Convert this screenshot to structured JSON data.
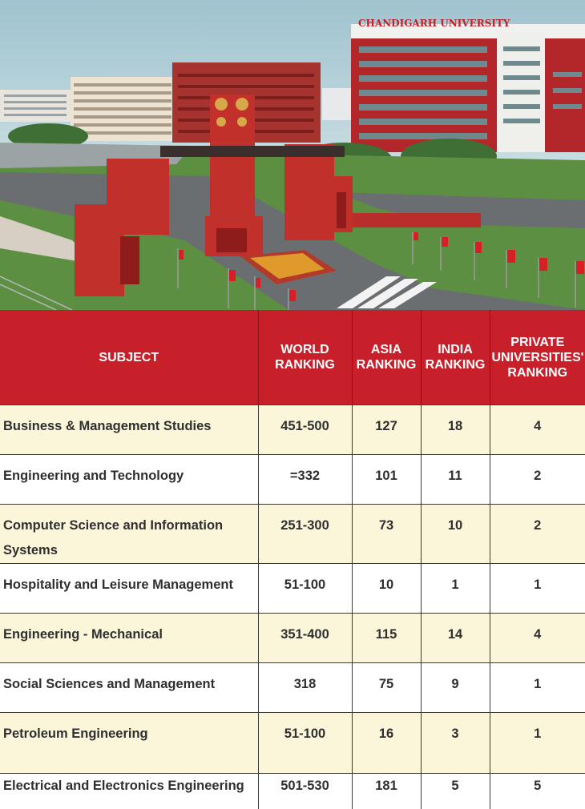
{
  "header_photo": {
    "sign_text": "CHANDIGARH UNIVERSITY"
  },
  "table": {
    "headers": [
      "SUBJECT",
      "WORLD\nRANKING",
      "ASIA\nRANKING",
      "INDIA\nRANKING",
      "PRIVATE\nUNIVERSITIES'\nRANKING"
    ],
    "rows": [
      {
        "subject": "Business & Management Studies",
        "world": "451-500",
        "asia": "127",
        "india": "18",
        "private": "4"
      },
      {
        "subject": "Engineering and Technology",
        "world": "=332",
        "asia": "101",
        "india": "11",
        "private": "2"
      },
      {
        "subject": "Computer Science and Information Systems",
        "world": "251-300",
        "asia": "73",
        "india": "10",
        "private": "2"
      },
      {
        "subject": "Hospitality and Leisure Management",
        "world": "51-100",
        "asia": "10",
        "india": "1",
        "private": "1"
      },
      {
        "subject": "Engineering - Mechanical",
        "world": "351-400",
        "asia": "115",
        "india": "14",
        "private": "4"
      },
      {
        "subject": "Social Sciences and Management",
        "world": "318",
        "asia": "75",
        "india": "9",
        "private": "1"
      },
      {
        "subject": "Petroleum Engineering",
        "world": "51-100",
        "asia": "16",
        "india": "3",
        "private": "1"
      },
      {
        "subject": "Electrical and Electronics Engineering",
        "world": "501-530",
        "asia": "181",
        "india": "5",
        "private": "5"
      }
    ]
  },
  "colors": {
    "header_red": "#c8202a",
    "row_cream": "#fbf6d9",
    "row_white": "#ffffff",
    "text_dark": "#2f2f2f",
    "building_red": "#b3262a",
    "lawn_green": "#4f8a3a",
    "sky": "#dfe9ee"
  }
}
